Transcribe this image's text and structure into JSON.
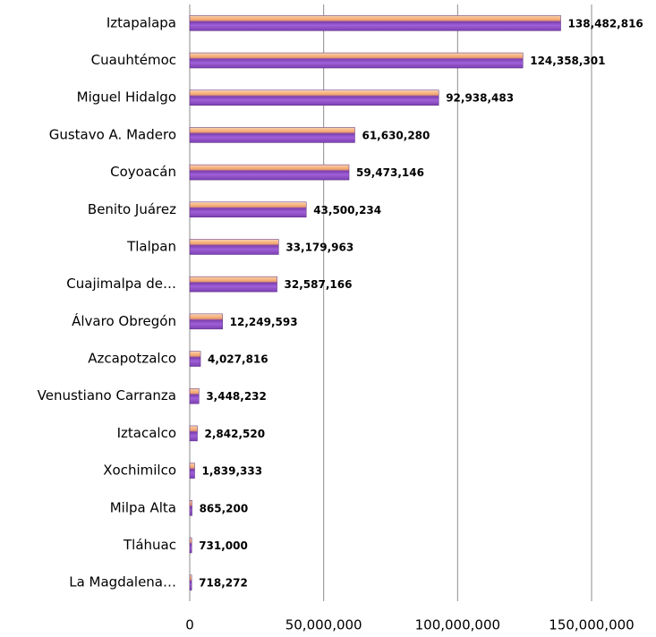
{
  "chart_data": {
    "type": "barh",
    "categories": [
      "Iztapalapa",
      "Cuauhtémoc",
      "Miguel Hidalgo",
      "Gustavo A. Madero",
      "Coyoacán",
      "Benito Juárez",
      "Tlalpan",
      "Cuajimalpa de…",
      "Álvaro Obregón",
      "Azcapotzalco",
      "Venustiano Carranza",
      "Iztacalco",
      "Xochimilco",
      "Milpa Alta",
      "Tláhuac",
      "La Magdalena…"
    ],
    "values": [
      138482816,
      124358301,
      92938483,
      61630280,
      59473146,
      43500234,
      33179963,
      32587166,
      12249593,
      4027816,
      3448232,
      2842520,
      1839333,
      865200,
      731000,
      718272
    ],
    "value_labels": [
      "138,482,816",
      "124,358,301",
      "92,938,483",
      "61,630,280",
      "59,473,146",
      "43,500,234",
      "33,179,963",
      "32,587,166",
      "12,249,593",
      "4,027,816",
      "3,448,232",
      "2,842,520",
      "1,839,333",
      "865,200",
      "731,000",
      "718,272"
    ],
    "color": "#7b3fb0",
    "top_color": "#f2a36a",
    "xlim": [
      0,
      150000000
    ],
    "xticks": [
      0,
      {
        "value": 50000000,
        "label": "50,000,000"
      },
      {
        "value": 100000000,
        "label": "100,000,000"
      },
      {
        "value": 150000000,
        "label": "150,000,000"
      }
    ],
    "grid": true
  }
}
